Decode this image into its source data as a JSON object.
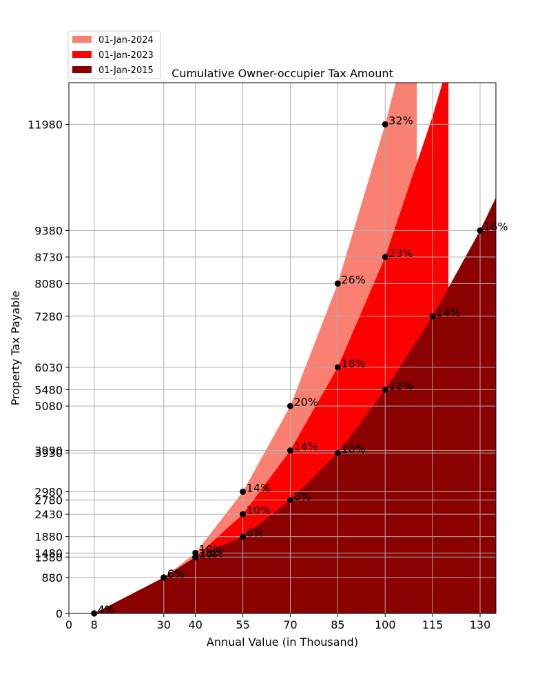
{
  "chart_data": {
    "type": "area",
    "title": "Cumulative Owner-occupier Tax Amount",
    "xlabel": "Annual Value (in Thousand)",
    "ylabel": "Property Tax Payable",
    "xlim": [
      0,
      135
    ],
    "ylim": [
      0,
      13000
    ],
    "grid": true,
    "legend_position": "top-left, outside plot area",
    "x_ticks": [
      "0",
      "8",
      "30",
      "40",
      "55",
      "70",
      "85",
      "100",
      "115",
      "130"
    ],
    "y_ticks": [
      "0",
      "880",
      "1380",
      "1480",
      "1880",
      "2430",
      "2780",
      "2980",
      "3930",
      "3990",
      "5080",
      "5480",
      "6030",
      "7280",
      "8080",
      "8730",
      "9380",
      "11980"
    ],
    "series": [
      {
        "name": "01-Jan-2024",
        "color": "#fa8072",
        "area_x": [
          8,
          30,
          40,
          55,
          70,
          85,
          100,
          110
        ],
        "area_y": [
          0,
          880,
          1480,
          2980,
          5080,
          8080,
          11980,
          15000
        ],
        "points": [
          {
            "x": 8,
            "y": 0,
            "label": "4%"
          },
          {
            "x": 30,
            "y": 880,
            "label": "6%"
          },
          {
            "x": 40,
            "y": 1480,
            "label": "10%"
          },
          {
            "x": 55,
            "y": 2980,
            "label": "14%"
          },
          {
            "x": 70,
            "y": 5080,
            "label": "20%"
          },
          {
            "x": 85,
            "y": 8080,
            "label": "26%"
          },
          {
            "x": 100,
            "y": 11980,
            "label": "32%"
          }
        ]
      },
      {
        "name": "01-Jan-2023",
        "color": "#ff0000",
        "area_x": [
          8,
          30,
          40,
          55,
          70,
          85,
          100,
          115,
          120
        ],
        "area_y": [
          0,
          880,
          1380,
          2430,
          3990,
          6030,
          8730,
          12180,
          13500
        ],
        "points": [
          {
            "x": 8,
            "y": 0,
            "label": "4%"
          },
          {
            "x": 30,
            "y": 880,
            "label": "6%"
          },
          {
            "x": 40,
            "y": 1380,
            "label": "10%"
          },
          {
            "x": 55,
            "y": 2430,
            "label": "10%"
          },
          {
            "x": 70,
            "y": 3990,
            "label": "14%"
          },
          {
            "x": 85,
            "y": 6030,
            "label": "18%"
          },
          {
            "x": 100,
            "y": 8730,
            "label": "23%"
          }
        ]
      },
      {
        "name": "01-Jan-2015",
        "color": "#8b0000",
        "area_x": [
          8,
          30,
          40,
          55,
          70,
          85,
          100,
          115,
          130,
          135
        ],
        "area_y": [
          0,
          880,
          1380,
          1880,
          2780,
          3930,
          5480,
          7280,
          9380,
          10190
        ],
        "points": [
          {
            "x": 8,
            "y": 0,
            "label": "4%"
          },
          {
            "x": 30,
            "y": 880,
            "label": "6%"
          },
          {
            "x": 40,
            "y": 1380,
            "label": "7%"
          },
          {
            "x": 55,
            "y": 1880,
            "label": "6%"
          },
          {
            "x": 70,
            "y": 2780,
            "label": "8%"
          },
          {
            "x": 85,
            "y": 3930,
            "label": "10%"
          },
          {
            "x": 100,
            "y": 5480,
            "label": "12%"
          },
          {
            "x": 115,
            "y": 7280,
            "label": "14%"
          },
          {
            "x": 130,
            "y": 9380,
            "label": "16%"
          }
        ]
      }
    ]
  }
}
